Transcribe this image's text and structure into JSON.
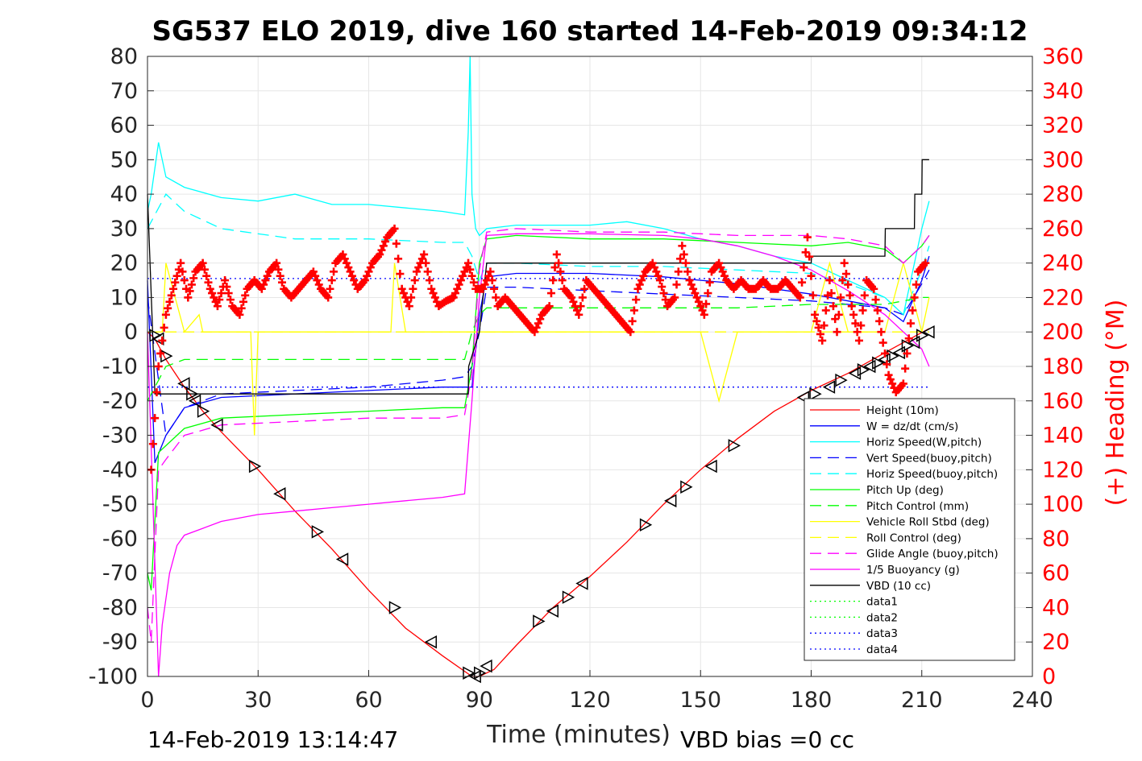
{
  "chart_data": {
    "type": "line",
    "title": "SG537 ELO 2019, dive 160 started 14-Feb-2019 09:34:12",
    "xlabel": "Time (minutes)",
    "ylabel": "",
    "y2label": "(+) Heading (°M)",
    "xlim": [
      0,
      240
    ],
    "ylim": [
      -100,
      80
    ],
    "y2lim": [
      0,
      360
    ],
    "x_ticks": [
      0,
      30,
      60,
      90,
      120,
      150,
      180,
      210,
      240
    ],
    "y_ticks": [
      80,
      70,
      60,
      50,
      40,
      30,
      20,
      10,
      0,
      -10,
      -20,
      -30,
      -40,
      -50,
      -60,
      -70,
      -80,
      -90,
      -100
    ],
    "y2_ticks": [
      360,
      340,
      320,
      300,
      280,
      260,
      240,
      220,
      200,
      180,
      160,
      140,
      120,
      100,
      80,
      60,
      40,
      20,
      0
    ],
    "grid": true,
    "legend_position": "bottom-right",
    "footer_left": "14-Feb-2019 13:14:47",
    "footer_right": "VBD bias =0 cc",
    "colors": {
      "height": "#ff0000",
      "w": "#0000ff",
      "horiz_w": "#00ffff",
      "vert_buoy": "#0000ff",
      "horiz_buoy": "#00ffff",
      "pitch": "#00ff00",
      "pitch_ctl": "#00ff00",
      "roll": "#ffff00",
      "roll_ctl": "#ffff00",
      "glide": "#ff00ff",
      "buoyancy": "#ff00ff",
      "vbd": "#000000",
      "heading": "#ff0000"
    },
    "series": [
      {
        "name": "Height (10m)",
        "key": "height",
        "style": "solid",
        "marker": "triangle",
        "x": [
          0,
          2,
          5,
          10,
          15,
          20,
          30,
          40,
          50,
          60,
          70,
          80,
          88,
          90,
          94,
          100,
          110,
          120,
          130,
          140,
          150,
          160,
          170,
          180,
          190,
          200,
          212
        ],
        "y": [
          0,
          -2,
          -8,
          -16,
          -23,
          -29,
          -40,
          -52,
          -63,
          -75,
          -86,
          -94,
          -100,
          -100,
          -98,
          -91,
          -80,
          -71,
          -61,
          -50,
          -40,
          -31,
          -23,
          -17,
          -12,
          -6,
          1
        ]
      },
      {
        "name": "W = dz/dt (cm/s)",
        "key": "w",
        "style": "solid",
        "x": [
          0,
          2,
          5,
          10,
          20,
          40,
          60,
          80,
          88,
          90,
          92,
          100,
          120,
          140,
          160,
          180,
          190,
          200,
          205,
          210,
          212
        ],
        "y": [
          15,
          -38,
          -30,
          -22,
          -19,
          -18,
          -17,
          -16,
          -16,
          5,
          16,
          17,
          17,
          16,
          14,
          11,
          9,
          7,
          3,
          15,
          22
        ]
      },
      {
        "name": "Horiz Speed(W,pitch)",
        "key": "horiz_w",
        "style": "solid",
        "x": [
          0,
          1,
          3,
          5,
          10,
          20,
          30,
          40,
          50,
          60,
          70,
          80,
          86,
          87,
          87.5,
          88,
          89,
          90,
          92,
          100,
          110,
          120,
          130,
          140,
          150,
          160,
          170,
          180,
          190,
          200,
          205,
          210,
          212
        ],
        "y": [
          35,
          40,
          55,
          45,
          42,
          39,
          38,
          40,
          37,
          37,
          36,
          35,
          34,
          58,
          80,
          40,
          30,
          28,
          30,
          31,
          31,
          31,
          32,
          30,
          27,
          25,
          22,
          20,
          15,
          10,
          5,
          30,
          38
        ]
      },
      {
        "name": "Vert Speed(buoy,pitch)",
        "key": "vert_buoy",
        "style": "dashed",
        "x": [
          0,
          5,
          10,
          20,
          40,
          60,
          80,
          86,
          88,
          90,
          92,
          100,
          120,
          140,
          160,
          180,
          190,
          200,
          205,
          210,
          212
        ],
        "y": [
          10,
          -30,
          -22,
          -18,
          -17,
          -16,
          -14,
          -13,
          -10,
          0,
          13,
          13,
          12,
          11,
          10,
          9,
          8,
          7,
          5,
          14,
          18
        ]
      },
      {
        "name": "Horiz Speed(buoy,pitch)",
        "key": "horiz_buoy",
        "style": "dashed",
        "x": [
          0,
          5,
          10,
          20,
          40,
          60,
          80,
          86,
          88,
          90,
          92,
          100,
          120,
          140,
          160,
          180,
          190,
          200,
          205,
          210,
          212
        ],
        "y": [
          30,
          40,
          35,
          30,
          27,
          27,
          26,
          26,
          22,
          15,
          20,
          20,
          19,
          19,
          18,
          17,
          14,
          10,
          5,
          18,
          25
        ]
      },
      {
        "name": "Pitch Up (deg)",
        "key": "pitch",
        "style": "solid",
        "x": [
          0,
          1,
          3,
          5,
          10,
          20,
          40,
          60,
          80,
          86,
          88,
          90,
          92,
          100,
          120,
          140,
          160,
          180,
          190,
          200,
          205,
          210,
          212
        ],
        "y": [
          -70,
          -75,
          -35,
          -33,
          -28,
          -25,
          -24,
          -23,
          -22,
          -22,
          -10,
          20,
          27,
          28,
          27,
          27,
          26,
          25,
          26,
          24,
          20,
          25,
          28
        ]
      },
      {
        "name": "Pitch Control (mm)",
        "key": "pitch_ctl",
        "style": "dashed",
        "x": [
          0,
          5,
          10,
          20,
          40,
          60,
          80,
          86,
          88,
          90,
          92,
          100,
          120,
          140,
          160,
          180,
          190,
          200,
          205,
          210,
          212
        ],
        "y": [
          -20,
          -10,
          -8,
          -8,
          -8,
          -8,
          -8,
          -8,
          0,
          5,
          7,
          7,
          7,
          7,
          7,
          8,
          8,
          8,
          9,
          10,
          10
        ]
      },
      {
        "name": "Vehicle Roll Stbd (deg)",
        "key": "roll",
        "style": "solid",
        "x": [
          0,
          4,
          5,
          10,
          14,
          15,
          20,
          28,
          29,
          30,
          40,
          50,
          60,
          66,
          67,
          70,
          80,
          87,
          88,
          90,
          92,
          100,
          110,
          120,
          140,
          150,
          155,
          160,
          170,
          180,
          185,
          190,
          200,
          205,
          210,
          212
        ],
        "y": [
          0,
          0,
          20,
          0,
          5,
          0,
          0,
          0,
          -30,
          0,
          0,
          0,
          0,
          0,
          20,
          0,
          0,
          0,
          0,
          0,
          0,
          0,
          0,
          0,
          0,
          0,
          -20,
          0,
          0,
          0,
          20,
          0,
          0,
          20,
          0,
          10
        ]
      },
      {
        "name": "Roll Control (deg)",
        "key": "roll_ctl",
        "style": "dashed",
        "x": [
          0,
          5,
          10,
          20,
          40,
          60,
          80,
          88,
          90,
          92,
          100,
          110,
          120,
          140,
          150,
          160,
          180,
          190,
          200,
          210,
          212
        ],
        "y": [
          0,
          0,
          0,
          0,
          0,
          0,
          0,
          0,
          0,
          0,
          0,
          0,
          0,
          0,
          0,
          0,
          0,
          0,
          0,
          0,
          0
        ]
      },
      {
        "name": "Glide Angle (buoy,pitch)",
        "key": "glide",
        "style": "dashed",
        "x": [
          0,
          1,
          3,
          5,
          10,
          20,
          40,
          60,
          80,
          86,
          88,
          90,
          92,
          100,
          120,
          140,
          160,
          180,
          190,
          200,
          205,
          210,
          212
        ],
        "y": [
          -80,
          -90,
          -40,
          -37,
          -30,
          -27,
          -26,
          -25,
          -25,
          -24,
          -12,
          18,
          29,
          30,
          29,
          29,
          28,
          28,
          27,
          25,
          20,
          25,
          28
        ]
      },
      {
        "name": "1/5 Buoyancy (g)",
        "key": "buoyancy",
        "style": "solid",
        "x": [
          0,
          3,
          4,
          6,
          8,
          10,
          15,
          20,
          30,
          40,
          50,
          60,
          70,
          80,
          86,
          88,
          90,
          92,
          100,
          120,
          140,
          150,
          160,
          170,
          180,
          190,
          200,
          205,
          210,
          212
        ],
        "y": [
          0,
          -100,
          -85,
          -70,
          -62,
          -59,
          -57,
          -55,
          -53,
          -52,
          -51,
          -50,
          -49,
          -48,
          -47,
          -20,
          10,
          28,
          28.5,
          28.5,
          28,
          27,
          25,
          22,
          18,
          12,
          5,
          0,
          -5,
          -10
        ]
      },
      {
        "name": "VBD (10 cc)",
        "key": "vbd",
        "style": "solid",
        "x": [
          0,
          2,
          2.1,
          87,
          87.1,
          90,
          91,
          92,
          93,
          180,
          180.1,
          200,
          200.1,
          208,
          208.1,
          210,
          210.1,
          212
        ],
        "y": [
          40,
          -18,
          -18,
          -18,
          -10,
          0,
          10,
          20,
          20,
          20,
          22,
          22,
          30,
          30,
          40,
          40,
          50,
          50
        ]
      },
      {
        "name": "data1",
        "key": "data1",
        "style": "dotted",
        "color": "#00ff00",
        "x": [],
        "y": []
      },
      {
        "name": "data2",
        "key": "data2",
        "style": "dotted",
        "color": "#00ff00",
        "x": [],
        "y": []
      },
      {
        "name": "data3",
        "key": "data3",
        "style": "dotted",
        "color": "#0000ff",
        "x": [
          0,
          212
        ],
        "y": [
          15.5,
          15.5
        ]
      },
      {
        "name": "data4",
        "key": "data4",
        "style": "dotted",
        "color": "#0000ff",
        "x": [
          0,
          212
        ],
        "y": [
          -16,
          -16
        ]
      }
    ],
    "heading": {
      "axis": "right",
      "marker": "plus",
      "x": [
        1,
        3,
        5,
        7,
        9,
        11,
        13,
        15,
        17,
        19,
        21,
        23,
        25,
        27,
        29,
        31,
        33,
        35,
        37,
        39,
        41,
        43,
        45,
        47,
        49,
        51,
        53,
        55,
        57,
        59,
        61,
        63,
        65,
        67,
        69,
        71,
        73,
        75,
        77,
        79,
        81,
        83,
        85,
        87,
        89,
        91,
        93,
        95,
        97,
        99,
        101,
        103,
        105,
        107,
        109,
        111,
        113,
        115,
        117,
        119,
        121,
        123,
        125,
        127,
        129,
        131,
        133,
        135,
        137,
        139,
        141,
        143,
        145,
        147,
        149,
        151,
        153,
        155,
        157,
        159,
        161,
        163,
        165,
        167,
        169,
        171,
        173,
        175,
        177,
        179,
        181,
        183,
        185,
        187,
        189,
        191,
        193,
        195,
        197,
        199,
        201,
        203,
        205,
        207,
        209,
        211
      ],
      "y": [
        120,
        180,
        210,
        225,
        240,
        220,
        235,
        240,
        225,
        215,
        230,
        215,
        210,
        225,
        230,
        225,
        235,
        240,
        225,
        220,
        225,
        230,
        235,
        225,
        220,
        240,
        245,
        235,
        225,
        230,
        240,
        245,
        255,
        260,
        225,
        215,
        235,
        245,
        225,
        215,
        218,
        220,
        230,
        240,
        225,
        225,
        235,
        215,
        220,
        215,
        210,
        205,
        200,
        210,
        215,
        245,
        225,
        220,
        210,
        230,
        225,
        220,
        215,
        210,
        205,
        200,
        225,
        235,
        240,
        230,
        215,
        220,
        250,
        230,
        220,
        210,
        235,
        240,
        230,
        225,
        230,
        225,
        225,
        230,
        225,
        225,
        230,
        225,
        220,
        255,
        210,
        195,
        230,
        200,
        240,
        215,
        195,
        230,
        225,
        200,
        175,
        165,
        170,
        205,
        235,
        240
      ]
    },
    "height_markers_x": [
      2,
      3,
      5,
      10,
      12,
      13,
      15,
      19,
      29,
      36,
      46,
      53,
      67,
      77,
      87,
      89,
      90,
      92,
      106,
      110,
      114,
      118,
      135,
      142,
      146,
      153,
      159,
      178,
      181,
      185,
      188,
      192,
      194,
      196,
      198,
      200,
      202,
      204,
      206,
      208,
      210,
      212
    ],
    "height_markers_y": [
      -1,
      -2,
      -7,
      -15,
      -18,
      -20,
      -23,
      -27,
      -39,
      -47,
      -58,
      -66,
      -80,
      -90,
      -99,
      -100,
      -99,
      -97,
      -84,
      -81,
      -77,
      -73,
      -56,
      -49,
      -45,
      -39,
      -33,
      -19,
      -18,
      -16,
      -14,
      -12,
      -11,
      -10,
      -9,
      -8,
      -7,
      -6,
      -4,
      -3,
      -1,
      0
    ]
  }
}
